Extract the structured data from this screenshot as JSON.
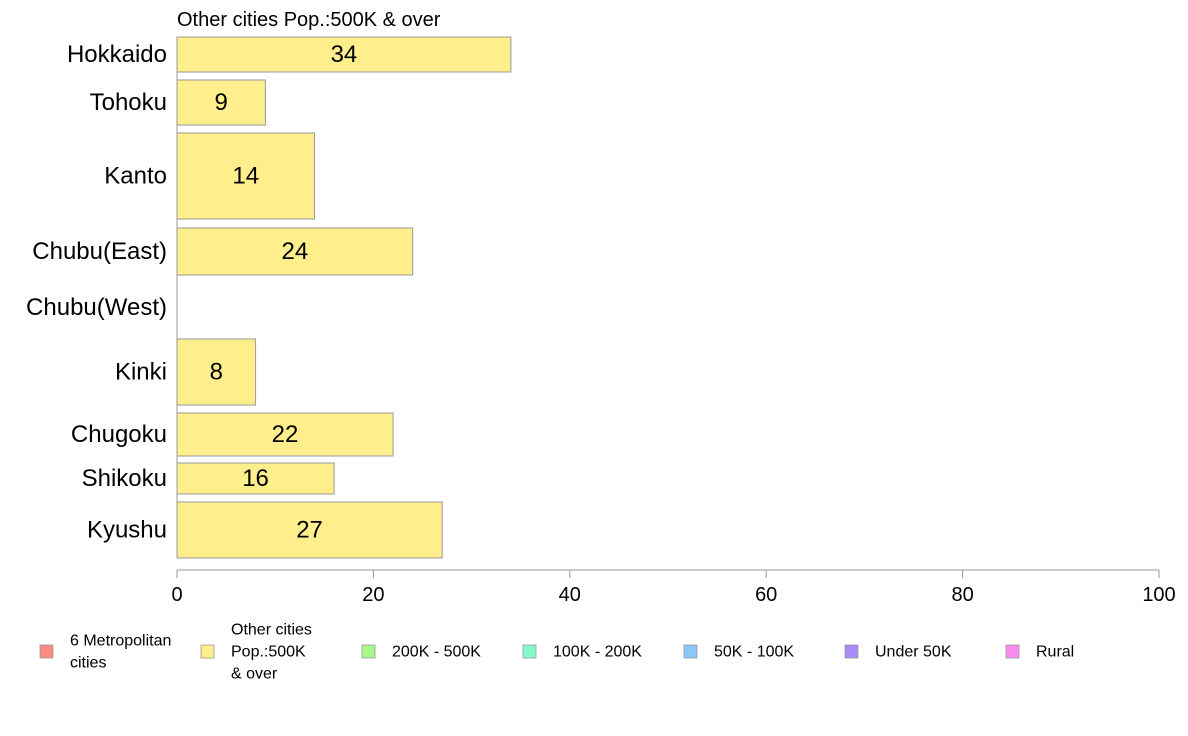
{
  "chart_data": {
    "type": "bar",
    "orientation": "horizontal",
    "title": "Other cities Pop.:500K & over",
    "xlabel": "",
    "ylabel": "",
    "xlim": [
      0,
      100
    ],
    "x_ticks": [
      0,
      20,
      40,
      60,
      80,
      100
    ],
    "grid": false,
    "bar_color": "#FFEE8C",
    "bar_edge_color": "#999999",
    "categories": [
      "Hokkaido",
      "Tohoku",
      "Kanto",
      "Chubu(East)",
      "Chubu(West)",
      "Kinki",
      "Chugoku",
      "Shikoku",
      "Kyushu"
    ],
    "values": [
      34,
      9,
      14,
      24,
      0,
      8,
      22,
      16,
      27
    ],
    "value_labels": [
      "34",
      "9",
      "14",
      "24",
      "",
      "8",
      "22",
      "16",
      "27"
    ],
    "legend": {
      "placement": "bottom",
      "entries": [
        {
          "lines": [
            "6 Metropolitan",
            " cities"
          ],
          "color": "#F98B83"
        },
        {
          "lines": [
            "Other cities",
            "Pop.:500K",
            " & over"
          ],
          "color": "#FFEE8C"
        },
        {
          "lines": [
            "200K - 500K"
          ],
          "color": "#A9F989"
        },
        {
          "lines": [
            "100K - 200K"
          ],
          "color": "#83F8C9"
        },
        {
          "lines": [
            "50K - 100K"
          ],
          "color": "#8BC8F9"
        },
        {
          "lines": [
            "Under 50K"
          ],
          "color": "#A98BF9"
        },
        {
          "lines": [
            "Rural"
          ],
          "color": "#F98BF0"
        }
      ]
    }
  }
}
